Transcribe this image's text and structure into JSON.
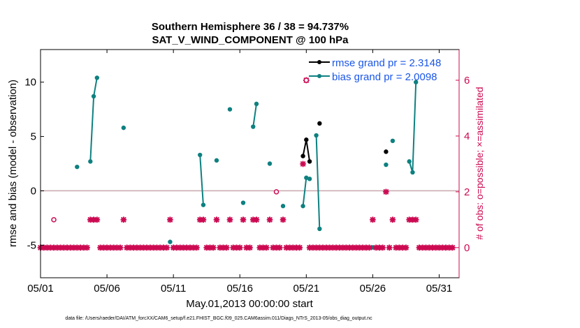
{
  "chart_data": {
    "type": "line",
    "title": "Southern Hemisphere 36 / 38 = 94.737%",
    "subtitle": "SAT_V_WIND_COMPONENT @ 100 hPa",
    "xlabel": "May.01,2013 00:00:00 start",
    "ylabel": "rmse and bias (model - observation)",
    "y2label": "# of obs: o=possible; ×=assimilated",
    "xlim": [
      0,
      31.5
    ],
    "ylim": [
      -8,
      13
    ],
    "y2lim": [
      -1.08,
      7.1
    ],
    "xticks": [
      0,
      5,
      10,
      15,
      20,
      25,
      30
    ],
    "xtick_labels": [
      "05/01",
      "05/06",
      "05/11",
      "05/16",
      "05/21",
      "05/26",
      "05/31"
    ],
    "yticks": [
      -5,
      0,
      5,
      10
    ],
    "y2ticks": [
      0,
      2,
      4,
      6
    ],
    "grid": false,
    "legend_position": "top-right",
    "colors": {
      "rmse": "#000000",
      "bias": "#0e8080",
      "obs": "#cc0a52",
      "zero_line": "#c9a7ad",
      "legend_text": "#1a56e8"
    },
    "series": [
      {
        "name": "rmse grand pr = 2.3148",
        "type": "line",
        "segments": [
          [
            [
              19.75,
              3.2
            ],
            [
              20.0,
              4.7
            ],
            [
              20.25,
              2.7
            ]
          ],
          [
            [
              21.0,
              6.2
            ]
          ],
          [
            [
              26.0,
              3.6
            ]
          ]
        ]
      },
      {
        "name": "bias grand pr = 2.0098",
        "type": "line",
        "segments": [
          [
            [
              2.75,
              2.2
            ]
          ],
          [
            [
              3.75,
              2.7
            ],
            [
              4.0,
              8.7
            ],
            [
              4.25,
              10.4
            ]
          ],
          [
            [
              6.25,
              5.8
            ]
          ],
          [
            [
              9.75,
              -4.7
            ]
          ],
          [
            [
              12.0,
              3.3
            ],
            [
              12.25,
              -1.3
            ]
          ],
          [
            [
              13.25,
              2.8
            ]
          ],
          [
            [
              14.25,
              7.5
            ]
          ],
          [
            [
              15.25,
              -1.1
            ]
          ],
          [
            [
              16.0,
              5.9
            ],
            [
              16.25,
              8.0
            ]
          ],
          [
            [
              17.25,
              2.5
            ]
          ],
          [
            [
              18.25,
              -1.4
            ]
          ],
          [
            [
              19.75,
              -1.4
            ],
            [
              20.0,
              1.2
            ],
            [
              20.25,
              1.1
            ]
          ],
          [
            [
              20.75,
              5.1
            ],
            [
              21.0,
              -3.5
            ]
          ],
          [
            [
              25.0,
              -5.2
            ]
          ],
          [
            [
              26.0,
              2.4
            ]
          ],
          [
            [
              26.5,
              4.6
            ]
          ],
          [
            [
              27.75,
              2.7
            ],
            [
              28.0,
              1.7
            ],
            [
              28.25,
              10.0
            ]
          ]
        ]
      },
      {
        "name": "possible",
        "type": "scatter",
        "axis": "right",
        "marker": "o",
        "points": [
          [
            1.0,
            1.0
          ],
          [
            17.75,
            2.0
          ],
          [
            20.0,
            6.0
          ]
        ]
      },
      {
        "name": "assimilated",
        "type": "scatter",
        "axis": "right",
        "marker": "x",
        "assimilated_one": [
          3.75,
          4.0,
          4.25,
          6.25,
          9.75,
          12.0,
          12.25,
          13.25,
          14.25,
          15.25,
          16.0,
          16.25,
          17.25,
          18.25,
          25.0,
          26.5,
          27.75,
          28.0,
          28.25
        ],
        "assimilated_two": [
          26.0
        ],
        "assimilated_three": [
          19.75
        ],
        "assimilated_six": [
          20.0
        ]
      }
    ]
  },
  "footer": "data file: /Users/raeder/DAI/ATM_forcXX/CAM6_setup/f.e21.FHIST_BGC.f09_025.CAM6assim.011/Diags_NTrS_2013-05/obs_diag_output.nc"
}
